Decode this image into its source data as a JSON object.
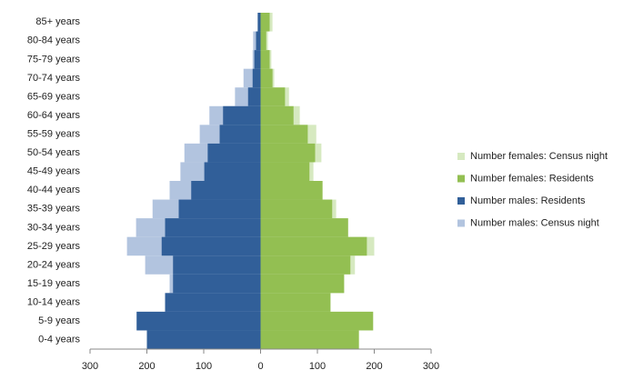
{
  "chart_data": {
    "type": "bar",
    "categories": [
      "0-4 years",
      "5-9 years",
      "10-14 years",
      "15-19 years",
      "20-24 years",
      "25-29 years",
      "30-34 years",
      "35-39 years",
      "40-44 years",
      "45-49 years",
      "50-54 years",
      "55-59 years",
      "60-64 years",
      "65-69 years",
      "70-74 years",
      "75-79 years",
      "80-84 years",
      "85+ years"
    ],
    "series": [
      {
        "name": "Number females: Census night",
        "color": "#d6e9c0",
        "values": [
          173,
          198,
          123,
          147,
          166,
          200,
          154,
          133,
          109,
          93,
          107,
          98,
          69,
          50,
          24,
          19,
          13,
          21
        ]
      },
      {
        "name": "Number females: Residents",
        "color": "#93bf52",
        "values": [
          173,
          198,
          123,
          147,
          158,
          187,
          154,
          126,
          109,
          86,
          96,
          83,
          58,
          43,
          21,
          16,
          10,
          16
        ]
      },
      {
        "name": "Number males: Residents",
        "color": "#315f99",
        "values": [
          -200,
          -218,
          -168,
          -154,
          -154,
          -174,
          -168,
          -144,
          -122,
          -99,
          -93,
          -72,
          -66,
          -22,
          -14,
          -11,
          -8,
          -5
        ]
      },
      {
        "name": "Number males: Census night",
        "color": "#b2c4df",
        "values": [
          -200,
          -218,
          -168,
          -160,
          -203,
          -235,
          -219,
          -190,
          -160,
          -141,
          -134,
          -107,
          -90,
          -45,
          -30,
          -14,
          -13,
          -5
        ]
      }
    ],
    "xlim": [
      -300,
      300
    ],
    "xticks": [
      {
        "value": -300,
        "label": "300"
      },
      {
        "value": -200,
        "label": "200"
      },
      {
        "value": -100,
        "label": "100"
      },
      0,
      100,
      200,
      300
    ]
  }
}
